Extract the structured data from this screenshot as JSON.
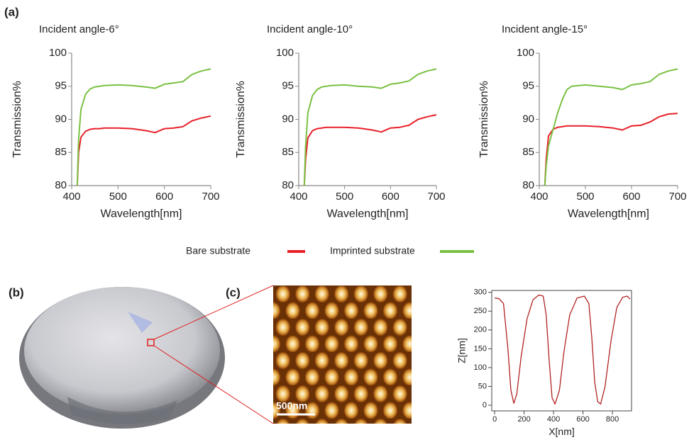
{
  "figure": {
    "panel_labels": [
      "(a)",
      "(b)",
      "(c)"
    ],
    "scale_bar": "500nm"
  },
  "chart_data": [
    {
      "type": "line",
      "title": "Incident angle-6°",
      "xlabel": "Wavelength[nm]",
      "ylabel": "Transmission%",
      "x": [
        412,
        415,
        420,
        430,
        440,
        450,
        460,
        470,
        500,
        530,
        560,
        580,
        600,
        620,
        640,
        660,
        680,
        700
      ],
      "series": [
        {
          "name": "Bare substrate",
          "color": "#e8202a",
          "values": [
            80,
            85,
            87.3,
            88.2,
            88.5,
            88.6,
            88.6,
            88.7,
            88.7,
            88.6,
            88.3,
            88.0,
            88.6,
            88.7,
            88.9,
            89.8,
            90.2,
            90.5
          ]
        },
        {
          "name": "Imprinted substrate",
          "color": "#7ac143",
          "values": [
            80,
            87,
            91.5,
            93.8,
            94.6,
            94.9,
            95.0,
            95.1,
            95.2,
            95.1,
            94.9,
            94.7,
            95.3,
            95.5,
            95.7,
            96.8,
            97.3,
            97.6
          ]
        }
      ],
      "xlim": [
        400,
        700
      ],
      "ylim": [
        80,
        100
      ],
      "xticks": [
        400,
        500,
        600,
        700
      ],
      "yticks": [
        80,
        85,
        90,
        95,
        100
      ]
    },
    {
      "type": "line",
      "title": "Incident angle-10°",
      "xlabel": "Wavelength[nm]",
      "ylabel": "Transmission%",
      "x": [
        412,
        415,
        420,
        430,
        440,
        450,
        460,
        470,
        500,
        530,
        560,
        580,
        600,
        620,
        640,
        660,
        680,
        700
      ],
      "series": [
        {
          "color": "#e8202a",
          "values": [
            80,
            84,
            87.2,
            88.3,
            88.6,
            88.7,
            88.8,
            88.8,
            88.8,
            88.7,
            88.4,
            88.1,
            88.7,
            88.8,
            89.1,
            90.0,
            90.4,
            90.7
          ]
        },
        {
          "color": "#7ac143",
          "values": [
            80,
            86,
            91.0,
            93.6,
            94.5,
            94.9,
            95.0,
            95.1,
            95.2,
            95.0,
            94.9,
            94.7,
            95.3,
            95.5,
            95.8,
            96.8,
            97.3,
            97.6
          ]
        }
      ],
      "xlim": [
        400,
        700
      ],
      "ylim": [
        80,
        100
      ],
      "xticks": [
        400,
        500,
        600,
        700
      ],
      "yticks": [
        80,
        85,
        90,
        95,
        100
      ]
    },
    {
      "type": "line",
      "title": "Incident angle-15°",
      "xlabel": "Wavelength[nm]",
      "ylabel": "Transmission%",
      "x": [
        412,
        415,
        420,
        430,
        440,
        450,
        460,
        470,
        500,
        530,
        560,
        580,
        600,
        620,
        640,
        660,
        680,
        700
      ],
      "series": [
        {
          "color": "#e8202a",
          "values": [
            80,
            84,
            87.5,
            88.5,
            88.8,
            88.9,
            89.0,
            89.0,
            89.0,
            88.9,
            88.7,
            88.4,
            89.0,
            89.1,
            89.6,
            90.4,
            90.8,
            90.9
          ]
        },
        {
          "color": "#7ac143",
          "values": [
            80,
            83,
            86.0,
            88.5,
            91.0,
            93.0,
            94.5,
            95.0,
            95.2,
            95.0,
            94.8,
            94.5,
            95.2,
            95.4,
            95.7,
            96.8,
            97.3,
            97.6
          ]
        }
      ],
      "xlim": [
        400,
        700
      ],
      "ylim": [
        80,
        100
      ],
      "xticks": [
        400,
        500,
        600,
        700
      ],
      "yticks": [
        80,
        85,
        90,
        95,
        100
      ]
    },
    {
      "type": "line",
      "xlabel": "X[nm]",
      "ylabel": "Z[nm]",
      "x": [
        0,
        30,
        60,
        90,
        110,
        130,
        150,
        180,
        220,
        260,
        300,
        330,
        350,
        370,
        390,
        410,
        440,
        470,
        510,
        560,
        610,
        640,
        660,
        680,
        700,
        720,
        750,
        790,
        830,
        870,
        900,
        920
      ],
      "series": [
        {
          "color": "#b22222",
          "values": [
            285,
            283,
            270,
            150,
            40,
            5,
            30,
            130,
            230,
            280,
            293,
            290,
            240,
            120,
            20,
            3,
            40,
            140,
            240,
            285,
            290,
            270,
            180,
            60,
            10,
            3,
            50,
            170,
            260,
            287,
            290,
            282
          ]
        }
      ],
      "xlim": [
        -20,
        930
      ],
      "ylim": [
        -15,
        305
      ],
      "xticks": [
        0,
        200,
        400,
        600,
        800
      ],
      "yticks": [
        0,
        50,
        100,
        150,
        200,
        250,
        300
      ]
    }
  ]
}
